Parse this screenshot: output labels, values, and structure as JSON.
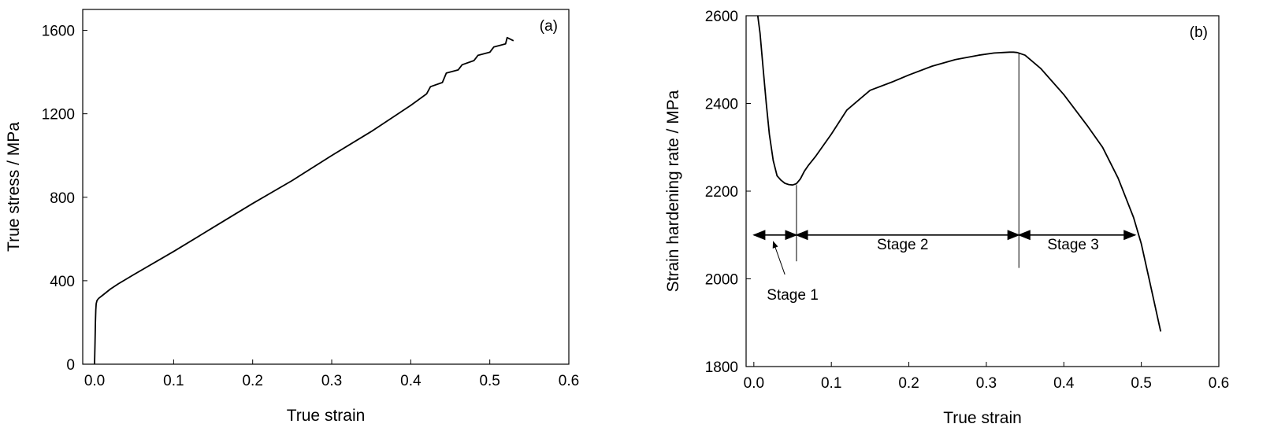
{
  "chart_data": [
    {
      "type": "line",
      "panel_label": "(a)",
      "xlabel": "True strain",
      "ylabel": "True stress / MPa",
      "xlim": [
        -0.015,
        0.6
      ],
      "ylim": [
        0,
        1700
      ],
      "x_ticks": [
        0.0,
        0.1,
        0.2,
        0.3,
        0.4,
        0.5,
        0.6
      ],
      "x_tick_labels": [
        "0.0",
        "0.1",
        "0.2",
        "0.3",
        "0.4",
        "0.5",
        "0.6"
      ],
      "y_ticks": [
        0,
        400,
        800,
        1200,
        1600
      ],
      "y_tick_labels": [
        "0",
        "400",
        "800",
        "1200",
        "1600"
      ],
      "grid": false,
      "series": [
        {
          "x": [
            0.0,
            0.0005,
            0.001,
            0.0015,
            0.002,
            0.003,
            0.005,
            0.01,
            0.02,
            0.03,
            0.05,
            0.1,
            0.15,
            0.2,
            0.25,
            0.3,
            0.35,
            0.4,
            0.42,
            0.425,
            0.44,
            0.445,
            0.46,
            0.465,
            0.48,
            0.485,
            0.5,
            0.505,
            0.52,
            0.522,
            0.53
          ],
          "y": [
            0,
            100,
            200,
            260,
            290,
            305,
            315,
            330,
            360,
            385,
            430,
            540,
            655,
            770,
            880,
            1000,
            1115,
            1240,
            1295,
            1330,
            1350,
            1395,
            1410,
            1435,
            1455,
            1480,
            1495,
            1520,
            1535,
            1565,
            1550
          ]
        }
      ]
    },
    {
      "type": "line",
      "panel_label": "(b)",
      "xlabel": "True strain",
      "ylabel": "Strain hardening rate / MPa",
      "xlim": [
        -0.01,
        0.6
      ],
      "ylim": [
        1800,
        2600
      ],
      "x_ticks": [
        0.0,
        0.1,
        0.2,
        0.3,
        0.4,
        0.5,
        0.6
      ],
      "x_tick_labels": [
        "0.0",
        "0.1",
        "0.2",
        "0.3",
        "0.4",
        "0.5",
        "0.6"
      ],
      "y_ticks": [
        1800,
        2000,
        2200,
        2400,
        2600
      ],
      "y_tick_labels": [
        "1800",
        "2000",
        "2200",
        "2400",
        "2600"
      ],
      "grid": false,
      "series": [
        {
          "x": [
            0.005,
            0.008,
            0.012,
            0.016,
            0.02,
            0.025,
            0.03,
            0.035,
            0.04,
            0.045,
            0.05,
            0.055,
            0.06,
            0.065,
            0.07,
            0.08,
            0.1,
            0.12,
            0.15,
            0.18,
            0.2,
            0.23,
            0.26,
            0.29,
            0.31,
            0.33,
            0.335,
            0.34,
            0.35,
            0.37,
            0.4,
            0.43,
            0.45,
            0.47,
            0.49,
            0.5,
            0.51,
            0.525
          ],
          "y": [
            2600,
            2560,
            2480,
            2400,
            2330,
            2270,
            2235,
            2225,
            2218,
            2215,
            2214,
            2217,
            2228,
            2245,
            2258,
            2280,
            2330,
            2385,
            2430,
            2450,
            2465,
            2485,
            2500,
            2510,
            2515,
            2517,
            2517,
            2516,
            2510,
            2480,
            2420,
            2350,
            2300,
            2230,
            2140,
            2080,
            2000,
            1880
          ]
        }
      ],
      "annotations": {
        "boundaries": [
          {
            "x": 0.055,
            "y_top": 2214,
            "y_bottom": 2040
          },
          {
            "x": 0.342,
            "y_top": 2516,
            "y_bottom": 2025
          }
        ],
        "arrow_y": 2100,
        "stage_arrows": [
          {
            "from": 0.0,
            "to": 0.055
          },
          {
            "from": 0.055,
            "to": 0.342
          },
          {
            "from": 0.342,
            "to": 0.492
          }
        ],
        "stage_labels": [
          {
            "text": "Stage 1",
            "x": 0.05,
            "y": 1965
          },
          {
            "text": "Stage 2",
            "x": 0.192,
            "y": 2080
          },
          {
            "text": "Stage 3",
            "x": 0.412,
            "y": 2080
          }
        ],
        "pointer": {
          "from": [
            0.04,
            2010
          ],
          "to": [
            0.025,
            2085
          ]
        }
      }
    }
  ]
}
